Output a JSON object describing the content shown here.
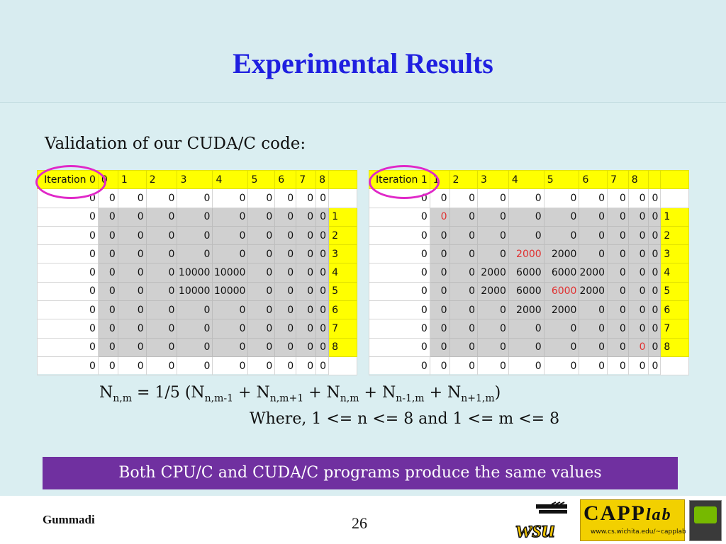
{
  "slide": {
    "title": "Experimental Results",
    "subtitle": "Validation of our CUDA/C code:",
    "where": "Where, 1 <= n <= 8 and 1 <= m <= 8",
    "banner": "Both CPU/C and CUDA/C programs produce the same values",
    "author": "Gummadi",
    "page": "26"
  },
  "formula": {
    "n": "N",
    "sub_lhs": "n,m",
    "eq": " = 1/5 (",
    "s1": "n,m-1",
    "s2": "n,m+1",
    "s3": "n,m",
    "s4": "n-1,m",
    "s5": "n+1,m",
    "plus": " + ",
    "close": ")"
  },
  "logos": {
    "wsu": "wsu",
    "capp": "CAPP",
    "capp_lab": "lab",
    "capp_url": "www.cs.wichita.edu/~capplab"
  },
  "tables": [
    {
      "label": "Iteration 0",
      "headers": [
        "0",
        "1",
        "2",
        "3",
        "4",
        "5",
        "6",
        "7",
        "8",
        ""
      ],
      "rows": [
        [
          "0",
          "0",
          "0",
          "0",
          "0",
          "0",
          "0",
          "0",
          "0",
          "0",
          ""
        ],
        [
          "0",
          "0",
          "0",
          "0",
          "0",
          "0",
          "0",
          "0",
          "0",
          "0",
          "1"
        ],
        [
          "0",
          "0",
          "0",
          "0",
          "0",
          "0",
          "0",
          "0",
          "0",
          "0",
          "2"
        ],
        [
          "0",
          "0",
          "0",
          "0",
          "0",
          "0",
          "0",
          "0",
          "0",
          "0",
          "3"
        ],
        [
          "0",
          "0",
          "0",
          "0",
          "10000",
          "10000",
          "0",
          "0",
          "0",
          "0",
          "4"
        ],
        [
          "0",
          "0",
          "0",
          "0",
          "10000",
          "10000",
          "0",
          "0",
          "0",
          "0",
          "5"
        ],
        [
          "0",
          "0",
          "0",
          "0",
          "0",
          "0",
          "0",
          "0",
          "0",
          "0",
          "6"
        ],
        [
          "0",
          "0",
          "0",
          "0",
          "0",
          "0",
          "0",
          "0",
          "0",
          "0",
          "7"
        ],
        [
          "0",
          "0",
          "0",
          "0",
          "0",
          "0",
          "0",
          "0",
          "0",
          "0",
          "8"
        ],
        [
          "0",
          "0",
          "0",
          "0",
          "0",
          "0",
          "0",
          "0",
          "0",
          "0",
          ""
        ]
      ],
      "red": []
    },
    {
      "label": "Iteration 1",
      "headers": [
        "1",
        "2",
        "3",
        "4",
        "5",
        "6",
        "7",
        "8",
        "",
        ""
      ],
      "rows": [
        [
          "0",
          "0",
          "0",
          "0",
          "0",
          "0",
          "0",
          "0",
          "0",
          "0",
          ""
        ],
        [
          "0",
          "0",
          "0",
          "0",
          "0",
          "0",
          "0",
          "0",
          "0",
          "0",
          "1"
        ],
        [
          "0",
          "0",
          "0",
          "0",
          "0",
          "0",
          "0",
          "0",
          "0",
          "0",
          "2"
        ],
        [
          "0",
          "0",
          "0",
          "0",
          "2000",
          "2000",
          "0",
          "0",
          "0",
          "0",
          "3"
        ],
        [
          "0",
          "0",
          "0",
          "2000",
          "6000",
          "6000",
          "2000",
          "0",
          "0",
          "0",
          "4"
        ],
        [
          "0",
          "0",
          "0",
          "2000",
          "6000",
          "6000",
          "2000",
          "0",
          "0",
          "0",
          "5"
        ],
        [
          "0",
          "0",
          "0",
          "0",
          "2000",
          "2000",
          "0",
          "0",
          "0",
          "0",
          "6"
        ],
        [
          "0",
          "0",
          "0",
          "0",
          "0",
          "0",
          "0",
          "0",
          "0",
          "0",
          "7"
        ],
        [
          "0",
          "0",
          "0",
          "0",
          "0",
          "0",
          "0",
          "0",
          "0",
          "0",
          "8"
        ],
        [
          "0",
          "0",
          "0",
          "0",
          "0",
          "0",
          "0",
          "0",
          "0",
          "0",
          ""
        ]
      ],
      "red": [
        "1-1",
        "3-4",
        "5-5",
        "8-8"
      ]
    }
  ],
  "colors": {
    "title": "#1f1fe0",
    "banner": "#7030a0",
    "highlight": "#ffff00",
    "circle": "#e028c8",
    "red_value": "#e03030"
  }
}
